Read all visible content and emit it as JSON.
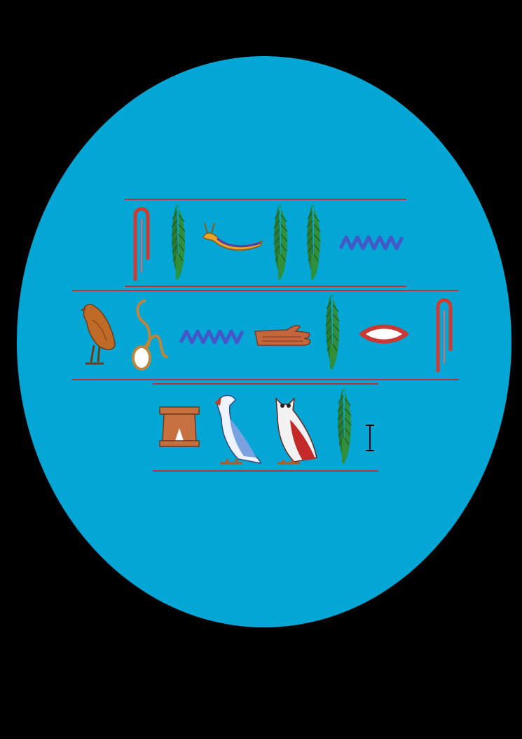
{
  "colors": {
    "page_background": "#000000",
    "oval": "#04a6d6",
    "rule_line": "#b8323a",
    "reed_leaf": "#2f8f3a",
    "water": "#4457c8",
    "folded_cloth": "#d13a2e",
    "bird_brown": "#c06a28",
    "hand": "#c4653d",
    "mouth": "#c93a36",
    "stool": "#c77040"
  },
  "rows": [
    {
      "glyphs": [
        "folded-cloth",
        "reed-leaf",
        "horned-viper",
        "reed-leaf",
        "reed-leaf",
        "water-ripple"
      ]
    },
    {
      "glyphs": [
        "quail-chick",
        "wick-of-twisted-flax",
        "water-ripple",
        "hand",
        "reed-leaf",
        "mouth",
        "folded-cloth"
      ]
    },
    {
      "glyphs": [
        "stool",
        "vulture",
        "owl",
        "reed-leaf"
      ]
    }
  ],
  "text_cursor": {
    "icon": "i-beam-cursor"
  }
}
